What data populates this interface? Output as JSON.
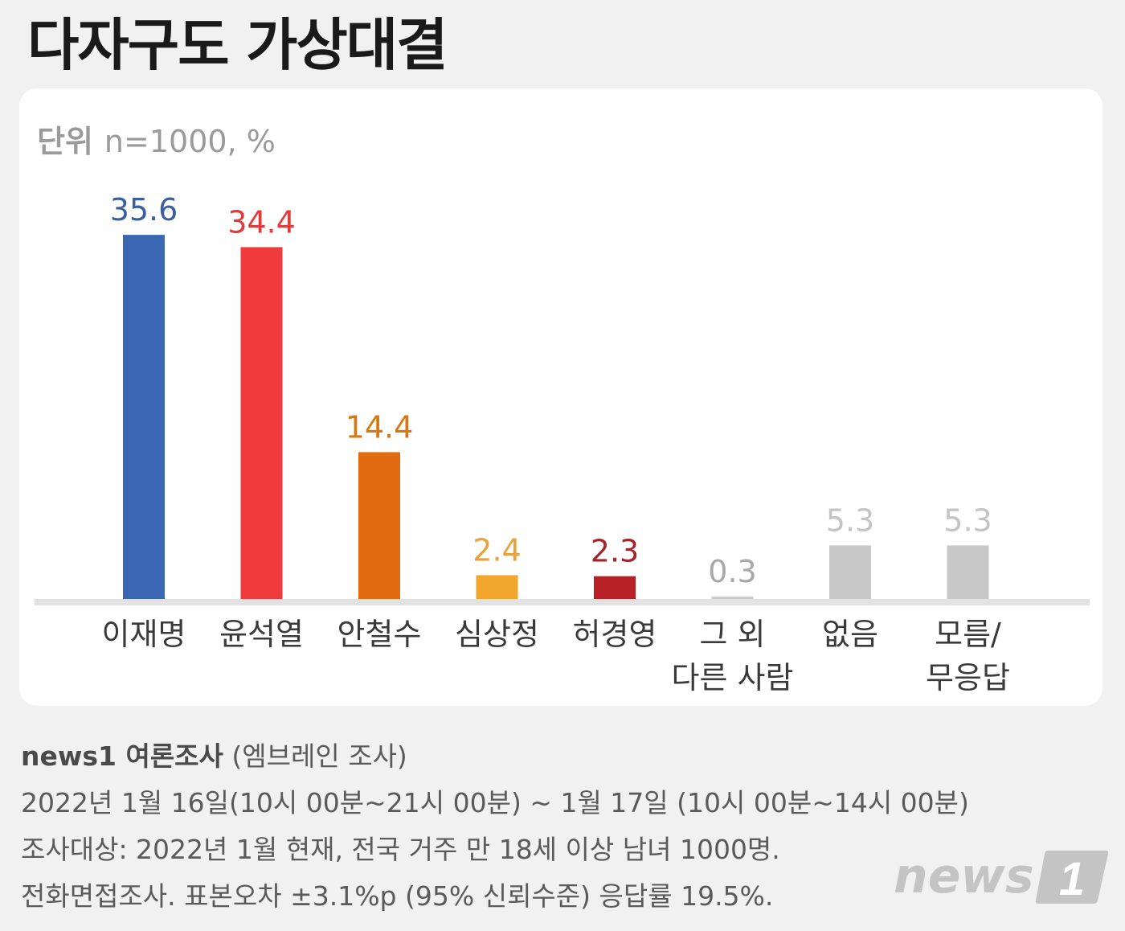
{
  "title": "다자구도 가상대결",
  "unit": {
    "label": "단위",
    "text": "n=1000, %"
  },
  "chart_data": {
    "type": "bar",
    "title": "다자구도 가상대결",
    "unit": "n=1000, %",
    "categories": [
      [
        "이재명"
      ],
      [
        "윤석열"
      ],
      [
        "안철수"
      ],
      [
        "심상정"
      ],
      [
        "허경영"
      ],
      [
        "그 외",
        "다른 사람"
      ],
      [
        "없음"
      ],
      [
        "모름/",
        "무응답"
      ]
    ],
    "values": [
      35.6,
      34.4,
      14.4,
      2.4,
      2.3,
      0.3,
      5.3,
      5.3
    ],
    "value_labels": [
      "35.6",
      "34.4",
      "14.4",
      "2.4",
      "2.3",
      "0.3",
      "5.3",
      "5.3"
    ],
    "colors": [
      "#3b67b2",
      "#ef3b3b",
      "#e06b10",
      "#f2a62b",
      "#b82226",
      "#c8c8c9",
      "#c8c8c9",
      "#c8c8c9"
    ],
    "label_colors": [
      "#3b5e9c",
      "#e03c3c",
      "#d9770f",
      "#e9a23b",
      "#a3242a",
      "#a8a8a8",
      "#c4c4c4",
      "#c4c4c4"
    ],
    "ylim": [
      0,
      40
    ]
  },
  "footer": {
    "brand": "news1 여론조사",
    "source": "(엠브레인 조사)",
    "lines": [
      "2022년 1월 16일(10시 00분~21시 00분) ~ 1월 17일 (10시 00분~14시 00분)",
      "조사대상: 2022년 1월 현재, 전국 거주 만 18세 이상 남녀 1000명.",
      "전화면접조사. 표본오차 ±3.1%p (95% 신뢰수준) 응답률 19.5%."
    ]
  },
  "logo": {
    "text": "news",
    "mark": "1"
  }
}
